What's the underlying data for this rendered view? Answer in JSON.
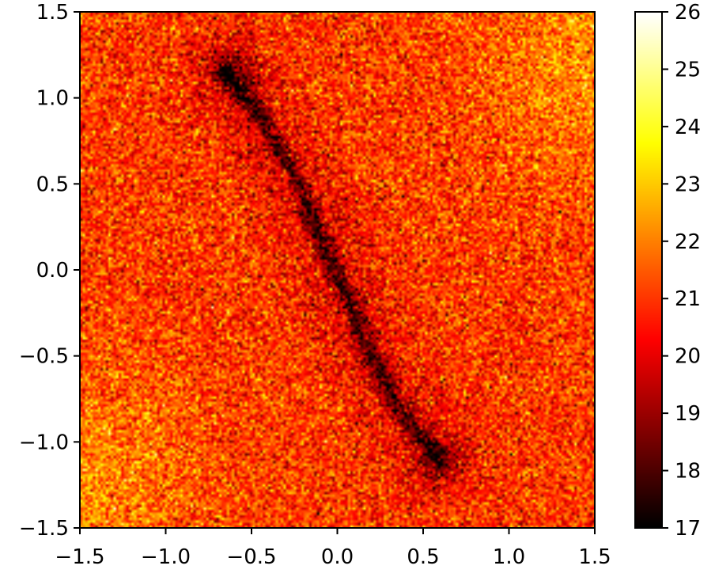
{
  "chart_data": {
    "type": "heatmap",
    "colormap": "hot",
    "x_range": [
      -1.5,
      1.5
    ],
    "y_range": [
      -1.5,
      1.5
    ],
    "x_ticks": [
      "−1.5",
      "−1.0",
      "−0.5",
      "0.0",
      "0.5",
      "1.0",
      "1.5"
    ],
    "y_ticks": [
      "−1.5",
      "−1.0",
      "−0.5",
      "0.0",
      "0.5",
      "1.0",
      "1.5"
    ],
    "colorbar": {
      "range": [
        17,
        26
      ],
      "ticks": [
        "17",
        "18",
        "19",
        "20",
        "21",
        "22",
        "23",
        "24",
        "25",
        "26"
      ]
    },
    "grid": false,
    "background_level": 21,
    "bright_region_level": 22.2,
    "dark_curve": {
      "description_points": [
        [
          -0.65,
          1.15
        ],
        [
          -0.45,
          0.9
        ],
        [
          -0.25,
          0.55
        ],
        [
          -0.1,
          0.2
        ],
        [
          0.05,
          -0.15
        ],
        [
          0.2,
          -0.5
        ],
        [
          0.35,
          -0.8
        ],
        [
          0.6,
          -1.1
        ]
      ],
      "level": 18.4
    }
  }
}
